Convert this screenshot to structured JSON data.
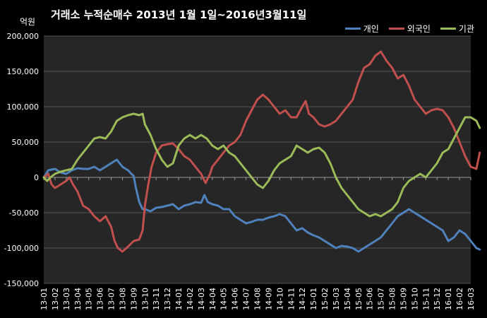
{
  "chart_data": {
    "type": "line",
    "title": "거래소 누적순매수 2013년 1월 1일~2016년3월11일",
    "unit": "억원",
    "ylim": [
      -150000,
      200000
    ],
    "yticks": [
      -150000,
      -100000,
      -50000,
      0,
      50000,
      100000,
      150000,
      200000
    ],
    "ytick_labels": [
      "-150,000",
      "-100,000",
      "-50,000",
      "0",
      "50,000",
      "100,000",
      "150,000",
      "200,000"
    ],
    "x_months": [
      "13-01",
      "13-02",
      "13-03",
      "13-04",
      "13-05",
      "13-06",
      "13-07",
      "13-08",
      "13-09",
      "13-10",
      "13-11",
      "13-12",
      "14-01",
      "14-02",
      "14-03",
      "14-04",
      "14-05",
      "14-06",
      "14-07",
      "14-08",
      "14-09",
      "14-10",
      "14-11",
      "14-12",
      "15-01",
      "15-02",
      "15-03",
      "15-04",
      "15-05",
      "15-06",
      "15-07",
      "15-08",
      "15-09",
      "15-10",
      "15-11",
      "15-12",
      "16-01",
      "16-02",
      "16-03"
    ],
    "grid": "horizontal",
    "legend_position": "top-right",
    "series": [
      {
        "name": "개인",
        "color": "#4f81bd",
        "points": [
          [
            0,
            0
          ],
          [
            0.4,
            10000
          ],
          [
            1,
            12000
          ],
          [
            1.5,
            7000
          ],
          [
            2,
            5000
          ],
          [
            2.5,
            10000
          ],
          [
            3,
            13000
          ],
          [
            3.5,
            12000
          ],
          [
            4,
            12000
          ],
          [
            4.5,
            15000
          ],
          [
            5,
            10000
          ],
          [
            5.5,
            15000
          ],
          [
            6,
            20000
          ],
          [
            6.5,
            25000
          ],
          [
            7,
            15000
          ],
          [
            7.5,
            10000
          ],
          [
            7.8,
            5000
          ],
          [
            8,
            2000
          ],
          [
            8.2,
            -15000
          ],
          [
            8.5,
            -35000
          ],
          [
            8.8,
            -45000
          ],
          [
            9,
            -45000
          ],
          [
            9.5,
            -48000
          ],
          [
            10,
            -43000
          ],
          [
            10.5,
            -42000
          ],
          [
            11,
            -40000
          ],
          [
            11.5,
            -38000
          ],
          [
            12,
            -45000
          ],
          [
            12.5,
            -40000
          ],
          [
            13,
            -38000
          ],
          [
            13.5,
            -35000
          ],
          [
            14,
            -36000
          ],
          [
            14.3,
            -25000
          ],
          [
            14.6,
            -35000
          ],
          [
            15,
            -38000
          ],
          [
            15.5,
            -40000
          ],
          [
            16,
            -45000
          ],
          [
            16.5,
            -45000
          ],
          [
            17,
            -55000
          ],
          [
            17.5,
            -60000
          ],
          [
            18,
            -65000
          ],
          [
            18.5,
            -63000
          ],
          [
            19,
            -60000
          ],
          [
            19.5,
            -60000
          ],
          [
            20,
            -57000
          ],
          [
            20.5,
            -55000
          ],
          [
            21,
            -52000
          ],
          [
            21.5,
            -55000
          ],
          [
            22,
            -65000
          ],
          [
            22.5,
            -75000
          ],
          [
            23,
            -72000
          ],
          [
            23.5,
            -78000
          ],
          [
            24,
            -82000
          ],
          [
            24.5,
            -85000
          ],
          [
            25,
            -90000
          ],
          [
            25.5,
            -95000
          ],
          [
            26,
            -100000
          ],
          [
            26.5,
            -97000
          ],
          [
            27,
            -98000
          ],
          [
            27.5,
            -100000
          ],
          [
            28,
            -105000
          ],
          [
            28.5,
            -100000
          ],
          [
            29,
            -95000
          ],
          [
            29.5,
            -90000
          ],
          [
            30,
            -85000
          ],
          [
            30.5,
            -75000
          ],
          [
            31,
            -65000
          ],
          [
            31.5,
            -55000
          ],
          [
            32,
            -50000
          ],
          [
            32.5,
            -45000
          ],
          [
            33,
            -50000
          ],
          [
            33.5,
            -55000
          ],
          [
            34,
            -60000
          ],
          [
            34.5,
            -65000
          ],
          [
            35,
            -70000
          ],
          [
            35.5,
            -75000
          ],
          [
            36,
            -90000
          ],
          [
            36.5,
            -85000
          ],
          [
            37,
            -75000
          ],
          [
            37.5,
            -80000
          ],
          [
            38,
            -90000
          ],
          [
            38.5,
            -100000
          ],
          [
            38.8,
            -102000
          ]
        ]
      },
      {
        "name": "외국인",
        "color": "#c0504d",
        "points": [
          [
            0,
            0
          ],
          [
            0.4,
            5000
          ],
          [
            0.7,
            -10000
          ],
          [
            1,
            -15000
          ],
          [
            1.5,
            -10000
          ],
          [
            2,
            -5000
          ],
          [
            2.3,
            0
          ],
          [
            2.6,
            -10000
          ],
          [
            3,
            -20000
          ],
          [
            3.5,
            -40000
          ],
          [
            4,
            -45000
          ],
          [
            4.5,
            -55000
          ],
          [
            5,
            -62000
          ],
          [
            5.5,
            -55000
          ],
          [
            6,
            -70000
          ],
          [
            6.3,
            -90000
          ],
          [
            6.6,
            -100000
          ],
          [
            7,
            -105000
          ],
          [
            7.5,
            -98000
          ],
          [
            8,
            -90000
          ],
          [
            8.5,
            -88000
          ],
          [
            8.8,
            -75000
          ],
          [
            9,
            -40000
          ],
          [
            9.3,
            -10000
          ],
          [
            9.6,
            15000
          ],
          [
            10,
            35000
          ],
          [
            10.5,
            45000
          ],
          [
            11,
            47000
          ],
          [
            11.5,
            48000
          ],
          [
            12,
            40000
          ],
          [
            12.5,
            30000
          ],
          [
            13,
            25000
          ],
          [
            13.5,
            15000
          ],
          [
            14,
            5000
          ],
          [
            14.4,
            -8000
          ],
          [
            14.8,
            5000
          ],
          [
            15,
            15000
          ],
          [
            15.5,
            25000
          ],
          [
            16,
            35000
          ],
          [
            16.5,
            45000
          ],
          [
            17,
            50000
          ],
          [
            17.5,
            60000
          ],
          [
            18,
            80000
          ],
          [
            18.5,
            95000
          ],
          [
            19,
            110000
          ],
          [
            19.5,
            117000
          ],
          [
            20,
            110000
          ],
          [
            20.5,
            100000
          ],
          [
            21,
            90000
          ],
          [
            21.5,
            95000
          ],
          [
            22,
            85000
          ],
          [
            22.5,
            85000
          ],
          [
            23,
            100000
          ],
          [
            23.3,
            108000
          ],
          [
            23.6,
            90000
          ],
          [
            24,
            85000
          ],
          [
            24.5,
            75000
          ],
          [
            25,
            72000
          ],
          [
            25.5,
            75000
          ],
          [
            26,
            80000
          ],
          [
            26.5,
            90000
          ],
          [
            27,
            100000
          ],
          [
            27.5,
            110000
          ],
          [
            28,
            135000
          ],
          [
            28.5,
            155000
          ],
          [
            29,
            160000
          ],
          [
            29.5,
            172000
          ],
          [
            30,
            178000
          ],
          [
            30.5,
            165000
          ],
          [
            31,
            155000
          ],
          [
            31.5,
            140000
          ],
          [
            32,
            145000
          ],
          [
            32.5,
            130000
          ],
          [
            33,
            110000
          ],
          [
            33.5,
            100000
          ],
          [
            34,
            90000
          ],
          [
            34.5,
            95000
          ],
          [
            35,
            97000
          ],
          [
            35.5,
            95000
          ],
          [
            36,
            85000
          ],
          [
            36.5,
            70000
          ],
          [
            37,
            50000
          ],
          [
            37.5,
            30000
          ],
          [
            38,
            15000
          ],
          [
            38.5,
            12000
          ],
          [
            38.8,
            35000
          ]
        ]
      },
      {
        "name": "기관",
        "color": "#9bbb59",
        "points": [
          [
            0,
            0
          ],
          [
            0.3,
            -5000
          ],
          [
            0.6,
            0
          ],
          [
            1,
            5000
          ],
          [
            1.5,
            8000
          ],
          [
            2,
            10000
          ],
          [
            2.5,
            12000
          ],
          [
            3,
            25000
          ],
          [
            3.5,
            35000
          ],
          [
            4,
            45000
          ],
          [
            4.5,
            55000
          ],
          [
            5,
            57000
          ],
          [
            5.5,
            55000
          ],
          [
            6,
            65000
          ],
          [
            6.5,
            80000
          ],
          [
            7,
            85000
          ],
          [
            7.5,
            88000
          ],
          [
            8,
            90000
          ],
          [
            8.5,
            88000
          ],
          [
            8.8,
            90000
          ],
          [
            9,
            75000
          ],
          [
            9.5,
            60000
          ],
          [
            10,
            40000
          ],
          [
            10.5,
            25000
          ],
          [
            11,
            15000
          ],
          [
            11.5,
            20000
          ],
          [
            12,
            45000
          ],
          [
            12.5,
            55000
          ],
          [
            13,
            60000
          ],
          [
            13.5,
            55000
          ],
          [
            14,
            60000
          ],
          [
            14.5,
            55000
          ],
          [
            15,
            45000
          ],
          [
            15.5,
            40000
          ],
          [
            16,
            45000
          ],
          [
            16.5,
            35000
          ],
          [
            17,
            30000
          ],
          [
            17.5,
            20000
          ],
          [
            18,
            10000
          ],
          [
            18.5,
            0
          ],
          [
            19,
            -10000
          ],
          [
            19.5,
            -15000
          ],
          [
            20,
            -5000
          ],
          [
            20.5,
            10000
          ],
          [
            21,
            20000
          ],
          [
            21.5,
            25000
          ],
          [
            22,
            30000
          ],
          [
            22.5,
            45000
          ],
          [
            23,
            40000
          ],
          [
            23.5,
            35000
          ],
          [
            24,
            40000
          ],
          [
            24.5,
            42000
          ],
          [
            25,
            35000
          ],
          [
            25.5,
            20000
          ],
          [
            26,
            0
          ],
          [
            26.5,
            -15000
          ],
          [
            27,
            -25000
          ],
          [
            27.5,
            -35000
          ],
          [
            28,
            -45000
          ],
          [
            28.5,
            -50000
          ],
          [
            29,
            -55000
          ],
          [
            29.5,
            -52000
          ],
          [
            30,
            -55000
          ],
          [
            30.5,
            -50000
          ],
          [
            31,
            -45000
          ],
          [
            31.5,
            -35000
          ],
          [
            32,
            -15000
          ],
          [
            32.5,
            -5000
          ],
          [
            33,
            0
          ],
          [
            33.5,
            5000
          ],
          [
            34,
            0
          ],
          [
            34.5,
            10000
          ],
          [
            35,
            20000
          ],
          [
            35.5,
            35000
          ],
          [
            36,
            40000
          ],
          [
            36.5,
            55000
          ],
          [
            37,
            70000
          ],
          [
            37.5,
            85000
          ],
          [
            38,
            85000
          ],
          [
            38.5,
            80000
          ],
          [
            38.8,
            70000
          ]
        ]
      }
    ]
  }
}
